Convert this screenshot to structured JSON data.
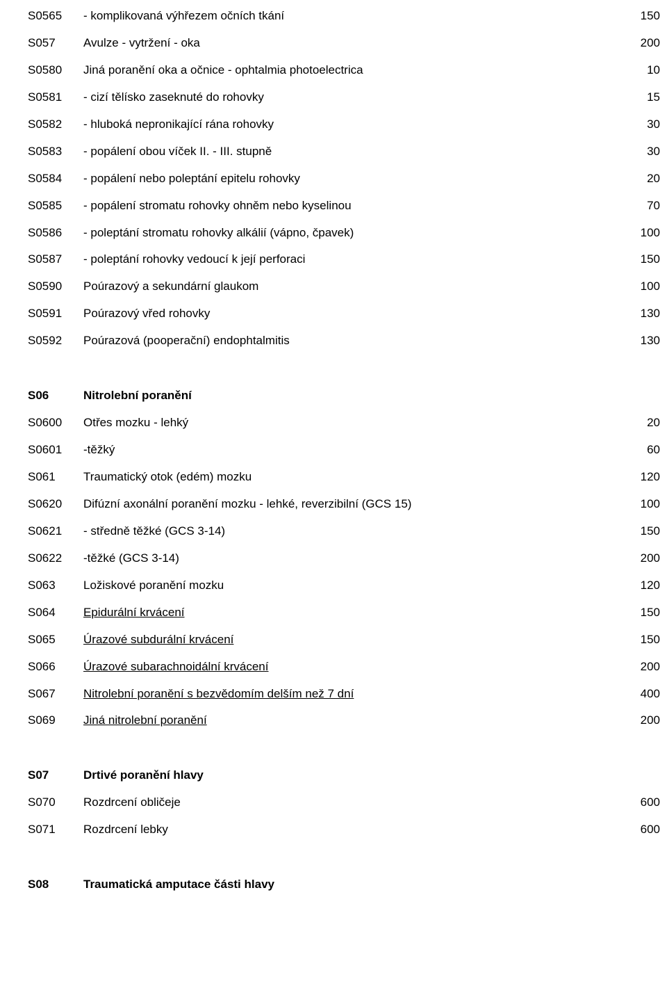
{
  "rows": [
    {
      "code": "S0565",
      "desc": "- komplikovaná výhřezem očních tkání",
      "val": "150"
    },
    {
      "code": "S057",
      "desc": "Avulze - vytržení - oka",
      "val": "200"
    },
    {
      "code": "S0580",
      "desc": "Jiná poranění oka a očnice - ophtalmia photoelectrica",
      "val": "10"
    },
    {
      "code": "S0581",
      "desc": "- cizí tělísko zaseknuté do rohovky",
      "val": "15"
    },
    {
      "code": "S0582",
      "desc": "- hluboká nepronikající rána rohovky",
      "val": "30"
    },
    {
      "code": "S0583",
      "desc": "- popálení obou víček II. - III. stupně",
      "val": "30"
    },
    {
      "code": "S0584",
      "desc": "- popálení nebo poleptání epitelu rohovky",
      "val": "20"
    },
    {
      "code": "S0585",
      "desc": "- popálení stromatu rohovky ohněm nebo kyselinou",
      "val": "70"
    },
    {
      "code": "S0586",
      "desc": "- poleptání stromatu rohovky alkálií (vápno, čpavek)",
      "val": "100"
    },
    {
      "code": "S0587",
      "desc": "- poleptání rohovky vedoucí k její perforaci",
      "val": "150"
    },
    {
      "code": "S0590",
      "desc": "Poúrazový a sekundární glaukom",
      "val": "100"
    },
    {
      "code": "S0591",
      "desc": "Poúrazový vřed rohovky",
      "val": "130"
    },
    {
      "code": "S0592",
      "desc": "Poúrazová (pooperační) endophtalmitis",
      "val": "130"
    }
  ],
  "section2": {
    "header": {
      "code": "S06",
      "desc": "Nitrolební poranění",
      "val": ""
    },
    "rows": [
      {
        "code": "S0600",
        "desc": "Otřes mozku - lehký",
        "val": "20"
      },
      {
        "code": "S0601",
        "desc": "-těžký",
        "val": "60"
      },
      {
        "code": "S061",
        "desc": "Traumatický otok (edém) mozku",
        "val": "120"
      },
      {
        "code": "S0620",
        "desc": "Difúzní axonální poranění mozku - lehké, reverzibilní (GCS 15)",
        "val": "100"
      },
      {
        "code": "S0621",
        "desc": "- středně těžké (GCS 3-14)",
        "val": "150"
      },
      {
        "code": "S0622",
        "desc": "-těžké (GCS 3-14)",
        "val": "200"
      },
      {
        "code": "S063",
        "desc": "Ložiskové poranění mozku",
        "val": "120"
      },
      {
        "code": "S064",
        "desc": "Epidurální krvácení",
        "val": "150",
        "underline": true
      },
      {
        "code": "S065",
        "desc": "Úrazové subdurální krvácení",
        "val": "150",
        "underline": true
      },
      {
        "code": "S066",
        "desc": "Úrazové subarachnoidální krvácení",
        "val": "200",
        "underline": true
      },
      {
        "code": "S067",
        "desc": "Nitrolební poranění s bezvědomím delším než 7 dní",
        "val": "400",
        "underline": true
      },
      {
        "code": "S069",
        "desc": "Jiná nitrolební poranění",
        "val": "200",
        "underline": true
      }
    ]
  },
  "section3": {
    "header": {
      "code": "S07",
      "desc": "Drtivé poranění hlavy",
      "val": ""
    },
    "rows": [
      {
        "code": "S070",
        "desc": "Rozdrcení obličeje",
        "val": "600"
      },
      {
        "code": "S071",
        "desc": "Rozdrcení lebky",
        "val": "600"
      }
    ]
  },
  "section4": {
    "header": {
      "code": "S08",
      "desc": "Traumatická amputace části hlavy",
      "val": ""
    }
  }
}
